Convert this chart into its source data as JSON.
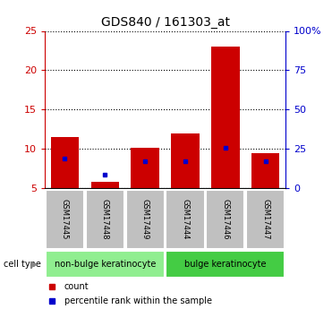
{
  "title": "GDS840 / 161303_at",
  "samples": [
    "GSM17445",
    "GSM17448",
    "GSM17449",
    "GSM17444",
    "GSM17446",
    "GSM17447"
  ],
  "counts": [
    11.5,
    5.8,
    10.2,
    12.0,
    23.0,
    9.5
  ],
  "percentiles_left": [
    8.8,
    6.8,
    8.5,
    8.5,
    10.2,
    8.5
  ],
  "ylim_left": [
    5,
    25
  ],
  "ylim_right": [
    0,
    100
  ],
  "yticks_left": [
    5,
    10,
    15,
    20,
    25
  ],
  "yticks_right": [
    0,
    25,
    50,
    75,
    100
  ],
  "ytick_labels_left": [
    "5",
    "10",
    "15",
    "20",
    "25"
  ],
  "ytick_labels_right": [
    "0",
    "25",
    "50",
    "75",
    "100%"
  ],
  "groups": [
    {
      "label": "non-bulge keratinocyte",
      "indices": [
        0,
        1,
        2
      ],
      "color": "#90EE90"
    },
    {
      "label": "bulge keratinocyte",
      "indices": [
        3,
        4,
        5
      ],
      "color": "#44CC44"
    }
  ],
  "bar_color": "#CC0000",
  "percentile_color": "#0000CC",
  "bar_width": 0.7,
  "grid_color": "#000000",
  "sample_cell_color": "#C0C0C0",
  "title_fontsize": 10,
  "tick_fontsize": 8,
  "left_axis_color": "#CC0000",
  "right_axis_color": "#0000CC",
  "cell_type_label": "cell type",
  "legend_count": "count",
  "legend_pct": "percentile rank within the sample"
}
